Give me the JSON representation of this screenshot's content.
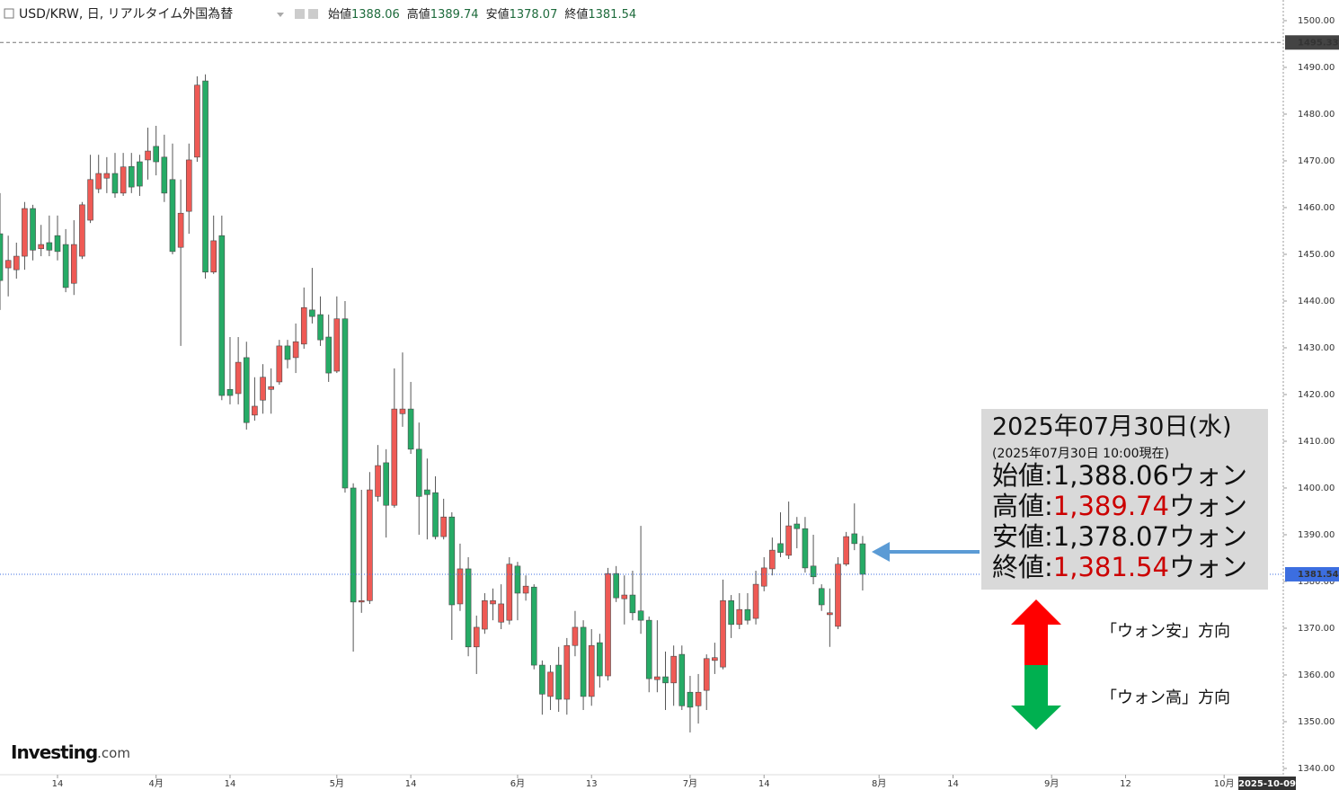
{
  "chart_data": {
    "type": "candlestick",
    "symbol": "USD/KRW, 日, リアルタイム外国為替",
    "ohlc_labels": [
      "始値",
      "高値",
      "安値",
      "終値"
    ],
    "up_color": "#ef5a55",
    "down_color": "#26ab66",
    "wick_color": "#555555",
    "open": [
      1454.4,
      1447.1,
      1446.7,
      1449.6,
      1459.8,
      1451.2,
      1452.5,
      1454.0,
      1452.1,
      1443.8,
      1449.6,
      1457.3,
      1464.0,
      1466.3,
      1467.3,
      1463.1,
      1468.8,
      1469.8,
      1470.2,
      1473.1,
      1470.8,
      1466.0,
      1451.5,
      1459.2,
      1470.8,
      1487.1,
      1446.2,
      1454.0,
      1421.1,
      1420.2,
      1427.9,
      1415.6,
      1418.8,
      1421.1,
      1422.7,
      1430.4,
      1427.9,
      1430.8,
      1438.1,
      1437.1,
      1432.3,
      1425.0,
      1436.2,
      1400.0,
      1375.6,
      1375.9,
      1398.2,
      1405.4,
      1396.3,
      1415.9,
      1416.9,
      1408.3,
      1399.6,
      1399.0,
      1389.6,
      1393.8,
      1375.2,
      1382.7,
      1366.0,
      1369.8,
      1375.2,
      1371.3,
      1371.7,
      1383.3,
      1377.5,
      1378.8,
      1362.1,
      1355.4,
      1362.1,
      1354.8,
      1366.3,
      1370.2,
      1355.4,
      1366.9,
      1359.8,
      1381.7,
      1376.3,
      1377.1,
      1373.7,
      1371.7,
      1359.0,
      1359.6,
      1358.3,
      1364.4,
      1356.3,
      1353.4,
      1356.7,
      1363.1,
      1361.7,
      1375.9,
      1370.8,
      1374.0,
      1372.1,
      1379.0,
      1382.7,
      1388.1,
      1385.6,
      1392.3,
      1391.3,
      1383.3,
      1378.5,
      1372.9,
      1370.4,
      1383.7,
      1390.2,
      1388.06
    ],
    "high": [
      1463.1,
      1454.0,
      1452.5,
      1461.2,
      1460.6,
      1456.3,
      1458.3,
      1458.3,
      1455.4,
      1457.3,
      1461.2,
      1471.3,
      1471.3,
      1470.8,
      1471.7,
      1471.7,
      1471.7,
      1471.3,
      1477.1,
      1477.5,
      1475.6,
      1473.7,
      1466.0,
      1473.7,
      1488.1,
      1488.5,
      1458.3,
      1458.3,
      1432.3,
      1432.3,
      1431.3,
      1423.7,
      1426.5,
      1425.6,
      1431.7,
      1431.7,
      1435.2,
      1442.9,
      1447.1,
      1441.0,
      1437.1,
      1441.0,
      1440.0,
      1401.0,
      1399.6,
      1403.4,
      1409.2,
      1408.3,
      1425.6,
      1429.0,
      1422.7,
      1414.0,
      1406.3,
      1402.5,
      1397.7,
      1394.8,
      1388.1,
      1385.2,
      1372.7,
      1377.5,
      1378.5,
      1379.4,
      1385.2,
      1384.2,
      1381.3,
      1379.4,
      1363.1,
      1362.1,
      1366.0,
      1367.9,
      1373.7,
      1371.7,
      1369.8,
      1368.8,
      1382.9,
      1383.3,
      1381.3,
      1382.3,
      1391.9,
      1372.5,
      1371.7,
      1365.0,
      1366.3,
      1366.3,
      1359.8,
      1360.2,
      1364.4,
      1366.9,
      1380.4,
      1377.1,
      1377.5,
      1377.5,
      1382.3,
      1385.2,
      1389.4,
      1394.8,
      1397.1,
      1393.8,
      1393.8,
      1390.0,
      1379.4,
      1378.5,
      1385.2,
      1390.6,
      1396.7,
      1389.74
    ],
    "low": [
      1438.1,
      1441.0,
      1444.8,
      1446.7,
      1448.7,
      1449.6,
      1449.6,
      1448.7,
      1441.9,
      1441.3,
      1449.0,
      1456.7,
      1463.1,
      1463.1,
      1462.1,
      1462.5,
      1463.1,
      1462.5,
      1466.0,
      1466.9,
      1461.2,
      1450.0,
      1430.4,
      1454.4,
      1469.8,
      1444.8,
      1445.8,
      1418.8,
      1417.9,
      1417.9,
      1412.5,
      1414.4,
      1415.9,
      1415.9,
      1422.1,
      1425.6,
      1424.6,
      1429.8,
      1435.2,
      1430.4,
      1422.7,
      1424.6,
      1399.0,
      1365.0,
      1373.3,
      1375.2,
      1397.1,
      1389.4,
      1395.8,
      1413.1,
      1407.3,
      1390.0,
      1389.0,
      1389.0,
      1389.0,
      1367.5,
      1373.7,
      1364.0,
      1360.2,
      1368.8,
      1371.7,
      1369.8,
      1370.8,
      1371.7,
      1375.9,
      1361.2,
      1351.5,
      1352.5,
      1352.1,
      1351.5,
      1364.0,
      1352.5,
      1353.4,
      1357.3,
      1358.8,
      1375.6,
      1370.8,
      1371.7,
      1368.8,
      1356.3,
      1356.3,
      1352.5,
      1353.4,
      1352.5,
      1347.7,
      1349.6,
      1352.5,
      1360.2,
      1361.2,
      1367.9,
      1369.8,
      1370.8,
      1370.8,
      1377.9,
      1381.3,
      1385.2,
      1384.8,
      1387.1,
      1381.9,
      1379.4,
      1373.7,
      1366.0,
      1369.8,
      1383.3,
      1386.7,
      1378.07
    ],
    "close": [
      1444.4,
      1448.7,
      1449.6,
      1459.8,
      1450.9,
      1452.1,
      1450.9,
      1450.6,
      1442.9,
      1452.1,
      1460.6,
      1466.0,
      1467.3,
      1467.3,
      1463.1,
      1468.7,
      1464.4,
      1464.6,
      1472.1,
      1469.8,
      1463.1,
      1450.6,
      1458.8,
      1470.2,
      1486.2,
      1446.2,
      1452.9,
      1419.8,
      1419.8,
      1426.9,
      1414.0,
      1417.5,
      1423.7,
      1421.7,
      1430.4,
      1427.5,
      1431.3,
      1438.6,
      1436.7,
      1431.7,
      1424.6,
      1436.2,
      1400.0,
      1375.6,
      1375.9,
      1399.6,
      1404.8,
      1396.3,
      1416.9,
      1416.9,
      1408.3,
      1398.2,
      1398.6,
      1389.6,
      1393.8,
      1375.0,
      1382.7,
      1366.0,
      1370.2,
      1375.9,
      1375.9,
      1375.2,
      1383.7,
      1377.5,
      1379.0,
      1362.1,
      1355.9,
      1360.6,
      1354.8,
      1366.3,
      1370.2,
      1355.4,
      1366.3,
      1359.8,
      1381.7,
      1376.5,
      1377.1,
      1373.3,
      1371.7,
      1359.2,
      1359.6,
      1358.3,
      1364.0,
      1353.4,
      1353.1,
      1356.3,
      1363.5,
      1363.7,
      1375.9,
      1370.8,
      1374.0,
      1371.7,
      1379.4,
      1382.9,
      1386.7,
      1386.2,
      1391.9,
      1391.3,
      1382.9,
      1381.0,
      1375.0,
      1373.3,
      1383.7,
      1389.6,
      1388.1,
      1381.54
    ],
    "xlim": [
      0,
      156.2
    ],
    "xticks": [
      {
        "value": 7,
        "label": "14"
      },
      {
        "value": 19,
        "label": "4月"
      },
      {
        "value": 28,
        "label": "14"
      },
      {
        "value": 41,
        "label": "5月"
      },
      {
        "value": 50,
        "label": "14"
      },
      {
        "value": 63,
        "label": "6月"
      },
      {
        "value": 72,
        "label": "13"
      },
      {
        "value": 84,
        "label": "7月"
      },
      {
        "value": 93,
        "label": "14"
      },
      {
        "value": 107,
        "label": "8月"
      },
      {
        "value": 116,
        "label": "14"
      },
      {
        "value": 128,
        "label": "9月"
      },
      {
        "value": 137,
        "label": "12"
      },
      {
        "value": 149,
        "label": "10月"
      }
    ],
    "ylim": [
      1338.65,
      1504.42
    ],
    "yticks": [
      {
        "value": 1340,
        "label": "1340.00"
      },
      {
        "value": 1350,
        "label": "1350.00"
      },
      {
        "value": 1360,
        "label": "1360.00"
      },
      {
        "value": 1370,
        "label": "1370.00"
      },
      {
        "value": 1380,
        "label": "1380.00"
      },
      {
        "value": 1390,
        "label": "1390.00"
      },
      {
        "value": 1400,
        "label": "1400.00"
      },
      {
        "value": 1410,
        "label": "1410.00"
      },
      {
        "value": 1420,
        "label": "1420.00"
      },
      {
        "value": 1430,
        "label": "1430.00"
      },
      {
        "value": 1440,
        "label": "1440.00"
      },
      {
        "value": 1450,
        "label": "1450.00"
      },
      {
        "value": 1460,
        "label": "1460.00"
      },
      {
        "value": 1470,
        "label": "1470.00"
      },
      {
        "value": 1480,
        "label": "1480.00"
      },
      {
        "value": 1490,
        "label": "1490.00"
      },
      {
        "value": 1500,
        "label": "1500.00"
      }
    ],
    "hline": 1495.33,
    "cursor_date": "2025-10-09",
    "logo": [
      "Investing",
      ".com"
    ],
    "annotation": {
      "date": "2025年07月30日(水)",
      "asof": "(2025年07月30日 10:00現在)",
      "separator": ":",
      "values": [
        "1,388.06",
        "1,389.74",
        "1,378.07",
        "1,381.54"
      ],
      "unit": "ウォン",
      "highlight": [
        false,
        true,
        false,
        true
      ],
      "highlight_color": "#cc0000",
      "up_text": "「ウォン安」方向",
      "down_text": "「ウォン高」方向"
    }
  }
}
